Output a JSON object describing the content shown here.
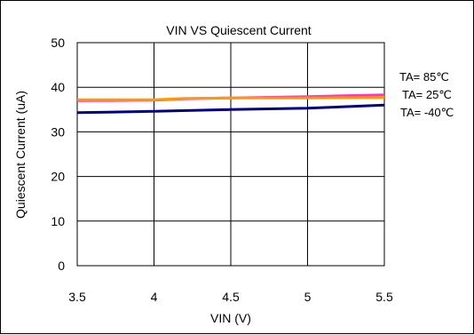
{
  "chart_data": {
    "type": "line",
    "title": "VIN VS Quiescent Current",
    "xlabel": "VIN (V)",
    "ylabel": "Quiescent Current (uA)",
    "xlim": [
      3.5,
      5.5
    ],
    "ylim": [
      0,
      50
    ],
    "x_ticks": [
      "3.5",
      "4",
      "4.5",
      "5",
      "5.5"
    ],
    "y_ticks": [
      "0",
      "10",
      "20",
      "30",
      "40",
      "50"
    ],
    "grid": true,
    "legend_position": "right",
    "series": [
      {
        "name": "TA= 85℃",
        "color": "#ff33cc",
        "x": [
          3.5,
          4.0,
          4.2,
          4.5,
          5.0,
          5.5
        ],
        "y": [
          37.0,
          37.1,
          37.4,
          37.6,
          37.9,
          38.3
        ]
      },
      {
        "name": "TA= 25℃",
        "color": "#ff9900",
        "x": [
          3.5,
          4.0,
          4.2,
          4.5,
          5.0,
          5.5
        ],
        "y": [
          37.2,
          37.2,
          37.5,
          37.6,
          37.6,
          37.7
        ]
      },
      {
        "name": "TA= -40℃",
        "color": "#000080",
        "x": [
          3.5,
          4.0,
          4.5,
          5.0,
          5.5
        ],
        "y": [
          34.3,
          34.6,
          35.0,
          35.3,
          36.0
        ]
      }
    ]
  }
}
